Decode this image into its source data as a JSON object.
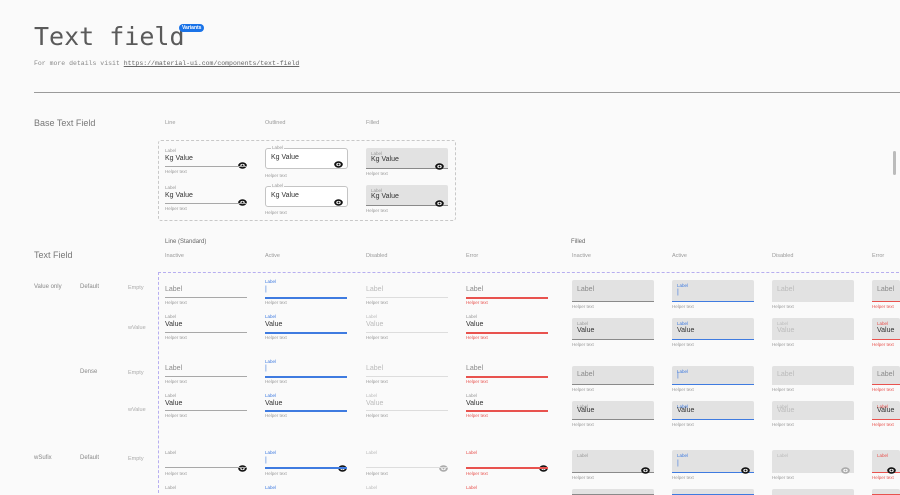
{
  "header": {
    "title": "Text field",
    "badge": "Variants",
    "subtitle_prefix": "For more details visit",
    "link": "https://material-ui.com/components/text-field"
  },
  "base": {
    "section_title": "Base Text Field",
    "columns": [
      "Line",
      "Outlined",
      "Filled"
    ]
  },
  "textfield": {
    "section_title": "Text Field",
    "groups": [
      "Line (Standard)",
      "Filled"
    ],
    "states": [
      "Inactive",
      "Active",
      "Disabled",
      "Error"
    ],
    "row_labels": [
      {
        "type": "Value only",
        "density": "Default",
        "content": "Empty"
      },
      {
        "type": "",
        "density": "",
        "content": "wValue"
      },
      {
        "type": "",
        "density": "Dense",
        "content": "Empty"
      },
      {
        "type": "",
        "density": "",
        "content": "wValue"
      },
      {
        "type": "wSufix",
        "density": "Default",
        "content": "Empty"
      }
    ]
  },
  "field_text": {
    "label": "Label",
    "value": "Value",
    "helper": "Helper text",
    "prefix": "Kg",
    "cursor": "|"
  },
  "icons": {
    "suffix": "eye-icon"
  },
  "colors": {
    "accent": "#3f7be0",
    "error": "#e8524e",
    "badge": "#1a73e8",
    "fill": "#e2e2e2"
  }
}
